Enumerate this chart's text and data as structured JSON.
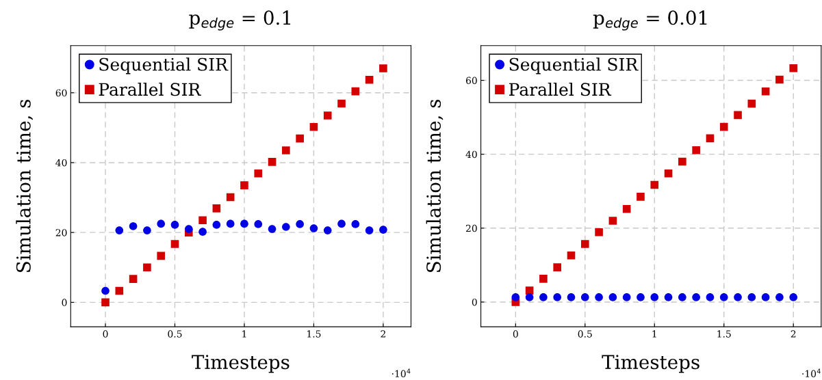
{
  "chart_data": [
    {
      "type": "scatter",
      "title": "p$_{edge}$ = 0.1",
      "xlabel": "Timesteps",
      "ylabel": "Simulation time, s",
      "annotations": [
        "·10$^{4}$"
      ],
      "x": [
        0,
        0.1,
        0.2,
        0.3,
        0.4,
        0.5,
        0.6,
        0.7,
        0.8,
        0.9,
        1.0,
        1.1,
        1.2,
        1.3,
        1.4,
        1.5,
        1.6,
        1.7,
        1.8,
        1.9,
        2.0
      ],
      "series": [
        {
          "name": "Sequential SIR",
          "color": "#0000e6",
          "marker": "circle",
          "values": [
            3.3,
            20.6,
            21.8,
            20.6,
            22.5,
            22.2,
            21.0,
            20.2,
            22.2,
            22.5,
            22.5,
            22.4,
            21.0,
            21.6,
            22.4,
            21.2,
            20.6,
            22.5,
            22.4,
            20.6,
            20.8
          ]
        },
        {
          "name": "Parallel SIR",
          "color": "#d40000",
          "marker": "square",
          "values": [
            0,
            3.3,
            6.7,
            10,
            13.3,
            16.7,
            20,
            23.5,
            26.9,
            30.1,
            33.5,
            36.9,
            40.2,
            43.5,
            46.9,
            50.2,
            53.5,
            56.9,
            60.4,
            63.7,
            67
          ]
        }
      ],
      "xlim": [
        -0.25,
        2.2
      ],
      "ylim": [
        -7,
        73.5
      ],
      "xticks": [
        0,
        0.5,
        1,
        1.5,
        2
      ],
      "yticks": [
        0,
        20,
        40,
        60
      ],
      "grid": true,
      "legend": "top left"
    },
    {
      "type": "scatter",
      "title": "p$_{edge}$ = 0.01",
      "xlabel": "Timesteps",
      "ylabel": "Simulation time, s",
      "annotations": [
        "·10$^{4}$"
      ],
      "x": [
        0,
        0.1,
        0.2,
        0.3,
        0.4,
        0.5,
        0.6,
        0.7,
        0.8,
        0.9,
        1.0,
        1.1,
        1.2,
        1.3,
        1.4,
        1.5,
        1.6,
        1.7,
        1.8,
        1.9,
        2.0
      ],
      "series": [
        {
          "name": "Sequential SIR",
          "color": "#0000e6",
          "marker": "circle",
          "values": [
            1.3,
            1.3,
            1.3,
            1.3,
            1.3,
            1.3,
            1.3,
            1.3,
            1.3,
            1.3,
            1.3,
            1.3,
            1.3,
            1.3,
            1.3,
            1.3,
            1.3,
            1.3,
            1.3,
            1.3,
            1.3
          ]
        },
        {
          "name": "Parallel SIR",
          "color": "#d40000",
          "marker": "square",
          "values": [
            0,
            3.1,
            6.3,
            9.4,
            12.6,
            15.7,
            18.9,
            22,
            25.2,
            28.5,
            31.7,
            34.8,
            38,
            41.1,
            44.3,
            47.4,
            50.6,
            53.7,
            57,
            60.2,
            63.3
          ]
        }
      ],
      "xlim": [
        -0.25,
        2.2
      ],
      "ylim": [
        -6.7,
        69.4
      ],
      "xticks": [
        0,
        0.5,
        1,
        1.5,
        2
      ],
      "yticks": [
        0,
        20,
        40,
        60
      ],
      "grid": true,
      "legend": "top left"
    }
  ]
}
